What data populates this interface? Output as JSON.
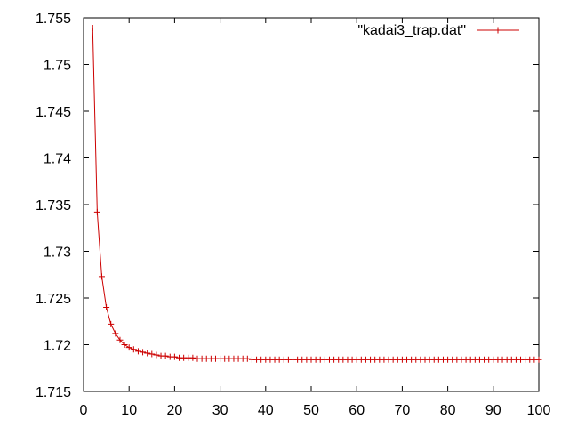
{
  "chart_data": {
    "type": "line",
    "title": "",
    "xlabel": "",
    "ylabel": "",
    "xlim": [
      0,
      100
    ],
    "ylim": [
      1.715,
      1.755
    ],
    "x_ticks": [
      0,
      10,
      20,
      30,
      40,
      50,
      60,
      70,
      80,
      90,
      100
    ],
    "x_tick_labels": [
      "0",
      "10",
      "20",
      "30",
      "40",
      "50",
      "60",
      "70",
      "80",
      "90",
      "100"
    ],
    "y_ticks": [
      1.715,
      1.72,
      1.725,
      1.73,
      1.735,
      1.74,
      1.745,
      1.75,
      1.755
    ],
    "y_tick_labels": [
      "1.715",
      "1.72",
      "1.725",
      "1.73",
      "1.735",
      "1.74",
      "1.745",
      "1.75",
      "1.755"
    ],
    "grid": false,
    "legend_position": "top-right",
    "marker": "plus",
    "color": "#cc0000",
    "series": [
      {
        "name": "\"kadai3_trap.dat\"",
        "x": [
          2,
          3,
          4,
          5,
          6,
          7,
          8,
          9,
          10,
          11,
          12,
          13,
          14,
          15,
          16,
          17,
          18,
          19,
          20,
          21,
          22,
          23,
          24,
          25,
          26,
          27,
          28,
          29,
          30,
          31,
          32,
          33,
          34,
          35,
          36,
          37,
          38,
          39,
          40,
          41,
          42,
          43,
          44,
          45,
          46,
          47,
          48,
          49,
          50,
          51,
          52,
          53,
          54,
          55,
          56,
          57,
          58,
          59,
          60,
          61,
          62,
          63,
          64,
          65,
          66,
          67,
          68,
          69,
          70,
          71,
          72,
          73,
          74,
          75,
          76,
          77,
          78,
          79,
          80,
          81,
          82,
          83,
          84,
          85,
          86,
          87,
          88,
          89,
          90,
          91,
          92,
          93,
          94,
          95,
          96,
          97,
          98,
          99,
          100
        ],
        "y": [
          1.7539,
          1.7342,
          1.7273,
          1.724,
          1.7222,
          1.7212,
          1.7205,
          1.72,
          1.7197,
          1.7195,
          1.7193,
          1.7192,
          1.7191,
          1.719,
          1.7189,
          1.7188,
          1.7188,
          1.7187,
          1.7187,
          1.7186,
          1.7186,
          1.7186,
          1.7186,
          1.7185,
          1.7185,
          1.7185,
          1.7185,
          1.7185,
          1.7185,
          1.7185,
          1.7185,
          1.7185,
          1.7185,
          1.7185,
          1.7185,
          1.7184,
          1.7184,
          1.7184,
          1.7184,
          1.7184,
          1.7184,
          1.7184,
          1.7184,
          1.7184,
          1.7184,
          1.7184,
          1.7184,
          1.7184,
          1.7184,
          1.7184,
          1.7184,
          1.7184,
          1.7184,
          1.7184,
          1.7184,
          1.7184,
          1.7184,
          1.7184,
          1.7184,
          1.7184,
          1.7184,
          1.7184,
          1.7184,
          1.7184,
          1.7184,
          1.7184,
          1.7184,
          1.7184,
          1.7184,
          1.7184,
          1.7184,
          1.7184,
          1.7184,
          1.7184,
          1.7184,
          1.7184,
          1.7184,
          1.7184,
          1.7184,
          1.7184,
          1.7184,
          1.7184,
          1.7184,
          1.7184,
          1.7184,
          1.7184,
          1.7184,
          1.7184,
          1.7184,
          1.7184,
          1.7184,
          1.7184,
          1.7184,
          1.7184,
          1.7184,
          1.7184,
          1.7184,
          1.7184,
          1.7184
        ]
      }
    ]
  }
}
